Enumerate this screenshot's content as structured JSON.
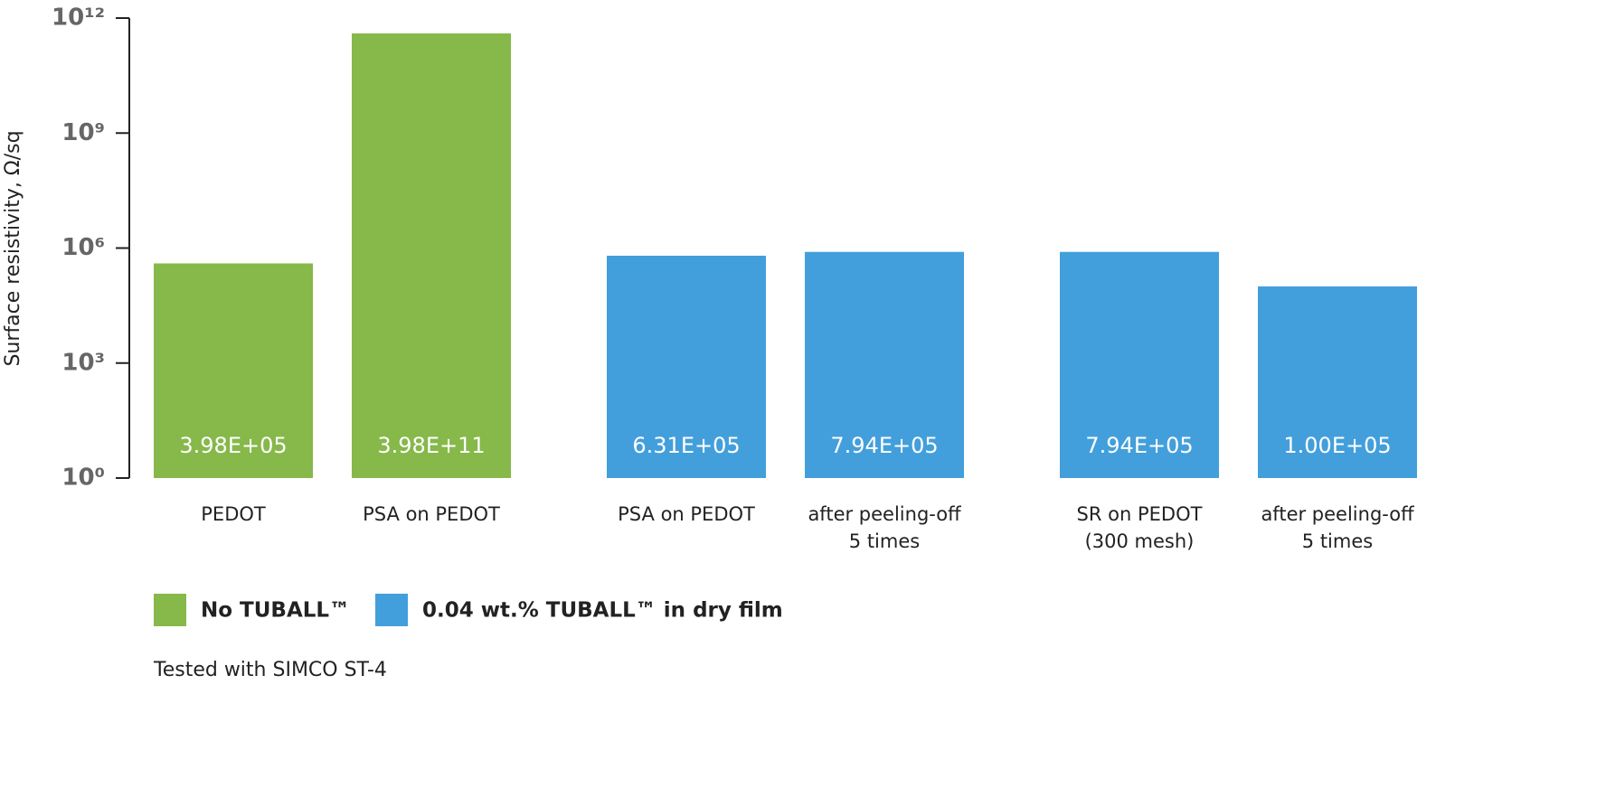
{
  "chart_data": {
    "type": "bar",
    "y_label": "Surface resistivity, Ω/sq",
    "log_scale": true,
    "categories": [
      "PEDOT",
      "PSA on PEDOT",
      "PSA on PEDOT",
      "after peeling-off\n5 times",
      "SR on PEDOT\n(300 mesh)",
      "after peeling-off\n5 times"
    ],
    "series": [
      {
        "name": "No TUBALL™",
        "color": "#86b84a",
        "values": [
          398000,
          398000000000,
          null,
          null,
          null,
          null
        ],
        "value_labels": [
          "3.98E+05",
          "3.98E+11",
          null,
          null,
          null,
          null
        ]
      },
      {
        "name": "0.04 wt.% TUBALL™ in dry film",
        "color": "#439fdc",
        "values": [
          null,
          null,
          631000,
          794000,
          794000,
          100000
        ],
        "value_labels": [
          null,
          null,
          "6.31E+05",
          "7.94E+05",
          "7.94E+05",
          "1.00E+05"
        ]
      }
    ],
    "ylim": [
      1,
      1000000000000
    ],
    "yticks": [
      {
        "value": 1,
        "label": "10⁰"
      },
      {
        "value": 1000,
        "label": "10³"
      },
      {
        "value": 1000000,
        "label": "10⁶"
      },
      {
        "value": 1000000000,
        "label": "10⁹"
      },
      {
        "value": 1000000000000,
        "label": "10¹²"
      }
    ],
    "note": "Tested with SIMCO ST-4"
  }
}
